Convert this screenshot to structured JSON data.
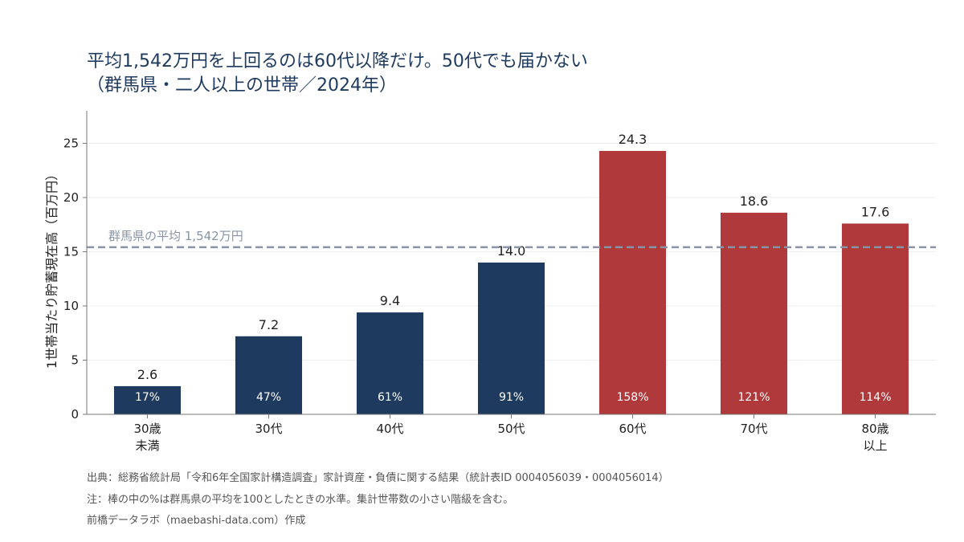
{
  "title": {
    "line1": "平均1,542万円を上回るのは60代以降だけ。50代でも届かない",
    "line2": "（群馬県・二人以上の世帯／2024年）"
  },
  "colors": {
    "below_avg": "#1f3a5f",
    "above_avg": "#b0393b",
    "avg_line": "#8a94a6",
    "grid": "#eeeeee",
    "axis": "#777777"
  },
  "chart_data": {
    "type": "bar",
    "categories": [
      [
        "30歳",
        "未満"
      ],
      [
        "30代"
      ],
      [
        "40代"
      ],
      [
        "50代"
      ],
      [
        "60代"
      ],
      [
        "70代"
      ],
      [
        "80歳",
        "以上"
      ]
    ],
    "values": [
      2.6,
      7.2,
      9.4,
      14.0,
      24.3,
      18.6,
      17.6
    ],
    "value_labels": [
      "2.6",
      "7.2",
      "9.4",
      "14.0",
      "24.3",
      "18.6",
      "17.6"
    ],
    "percent_labels": [
      "17%",
      "47%",
      "61%",
      "91%",
      "158%",
      "121%",
      "114%"
    ],
    "above_average": [
      false,
      false,
      false,
      false,
      true,
      true,
      true
    ],
    "ylabel": "1世帯当たり貯蓄現在高（百万円）",
    "xlabel": "",
    "ylim": [
      0,
      28
    ],
    "yticks": [
      0,
      5,
      10,
      15,
      20,
      25
    ],
    "grid": true,
    "average": {
      "value": 15.42,
      "label": "群馬県の平均 1,542万円"
    }
  },
  "notes": {
    "source": "出典：総務省統計局「令和6年全国家計構造調査」家計資産・負債に関する結果（統計表ID 0004056039・0004056014）",
    "note": "注：棒の中の%は群馬県の平均を100としたときの水準。集計世帯数の小さい階級を含む。",
    "credit": "前橋データラボ（maebashi-data.com）作成"
  }
}
